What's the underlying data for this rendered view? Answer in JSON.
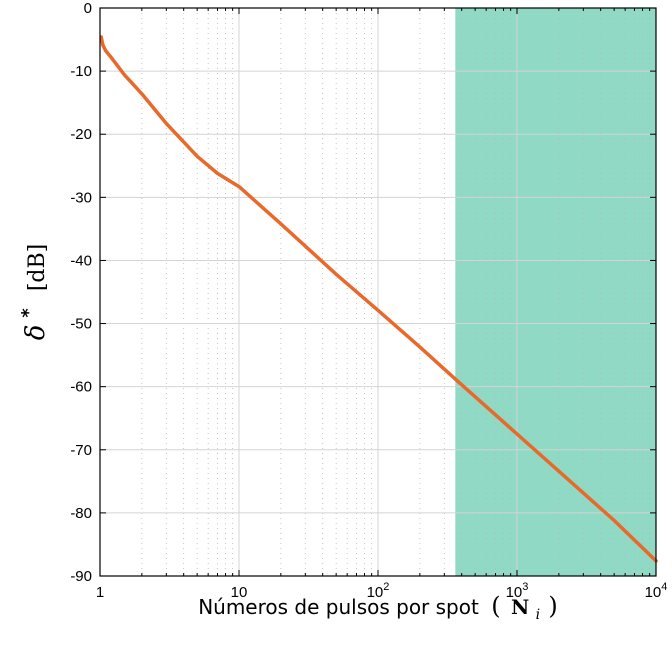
{
  "chart_data": {
    "type": "line",
    "xscale": "log",
    "xlim": [
      1,
      10000
    ],
    "ylim": [
      -90,
      0
    ],
    "xlabel": "Números de pulsos por spot",
    "xlabel_symbol": "N",
    "xlabel_subscript": "i",
    "ylabel_symbol": "δ",
    "ylabel_superscript": "*",
    "ylabel_unit": "[dB]",
    "x_ticks": [
      {
        "value": 1,
        "base": "1",
        "exp": ""
      },
      {
        "value": 10,
        "base": "10",
        "exp": ""
      },
      {
        "value": 100,
        "base": "10",
        "exp": "2"
      },
      {
        "value": 1000,
        "base": "10",
        "exp": "3"
      },
      {
        "value": 10000,
        "base": "10",
        "exp": "4"
      }
    ],
    "y_ticks": [
      0,
      -10,
      -20,
      -30,
      -40,
      -50,
      -60,
      -70,
      -80,
      -90
    ],
    "grid": true,
    "minor_grid": true,
    "shaded_region": {
      "x_start": 360,
      "x_end": 10000,
      "color": "#8fd9c5"
    },
    "series": [
      {
        "color": "#e8692a",
        "points": [
          [
            1.02,
            -4.6
          ],
          [
            1.05,
            -5.9
          ],
          [
            1.1,
            -6.8
          ],
          [
            1.2,
            -7.8
          ],
          [
            1.5,
            -10.6
          ],
          [
            2,
            -13.6
          ],
          [
            3,
            -18.3
          ],
          [
            5,
            -23.5
          ],
          [
            7,
            -26.2
          ],
          [
            10,
            -28.3
          ],
          [
            20,
            -34.2
          ],
          [
            50,
            -42.2
          ],
          [
            100,
            -47.9
          ],
          [
            200,
            -53.7
          ],
          [
            360,
            -58.8
          ],
          [
            500,
            -61.6
          ],
          [
            1000,
            -67.5
          ],
          [
            2000,
            -73.4
          ],
          [
            5000,
            -81.2
          ],
          [
            10000,
            -87.6
          ]
        ]
      }
    ]
  }
}
